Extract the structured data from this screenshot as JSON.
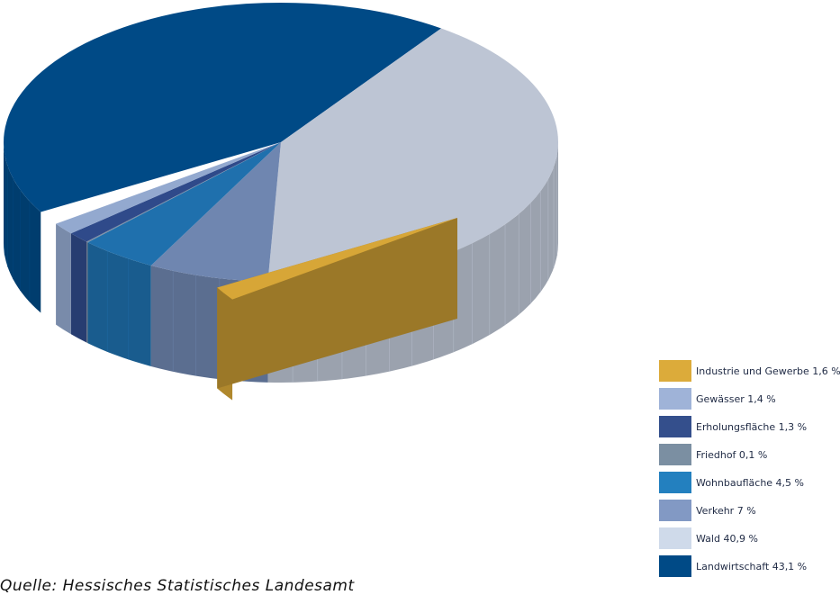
{
  "chart_data": {
    "type": "pie",
    "title": "",
    "slices": [
      {
        "label": "Landwirtschaft",
        "value": 43.1,
        "value_text": "43,1 %",
        "color": "#004a86"
      },
      {
        "label": "Wald",
        "value": 40.9,
        "value_text": "40,9 %",
        "color": "#bdc5d4"
      },
      {
        "label": "Verkehr",
        "value": 7,
        "value_text": "7 %",
        "color": "#6f86b0"
      },
      {
        "label": "Wohnbaufläche",
        "value": 4.5,
        "value_text": "4,5 %",
        "color": "#1f70ad"
      },
      {
        "label": "Friedhof",
        "value": 0.1,
        "value_text": "0,1 %",
        "color": "#7c8ea3"
      },
      {
        "label": "Erholungsfläche",
        "value": 1.3,
        "value_text": "1,3 %",
        "color": "#2f4a8a"
      },
      {
        "label": "Gewässer",
        "value": 1.4,
        "value_text": "1,4 %",
        "color": "#93a9cf"
      },
      {
        "label": "Industrie und Gewerbe",
        "value": 1.6,
        "value_text": "1,6 %",
        "color": "#d7a637",
        "exploded": true
      }
    ],
    "legend": {
      "placement": "bottom-right",
      "items": [
        {
          "text": "Industrie und Gewerbe 1,6 %",
          "color": "#dcab3a"
        },
        {
          "text": "Gewässer 1,4 %",
          "color": "#9fb3d8"
        },
        {
          "text": "Erholungsfläche 1,3 %",
          "color": "#344f8c"
        },
        {
          "text": "Friedhof 0,1 %",
          "color": "#7b8fa2"
        },
        {
          "text": "Wohnbaufläche 4,5 %",
          "color": "#2380bf"
        },
        {
          "text": "Verkehr 7 %",
          "color": "#8299c4"
        },
        {
          "text": "Wald 40,9 %",
          "color": "#cfdaea"
        },
        {
          "text": "Landwirtschaft 43,1 %",
          "color": "#004a86"
        }
      ]
    }
  },
  "source": "Quelle: Hessisches Statistisches Landesamt"
}
